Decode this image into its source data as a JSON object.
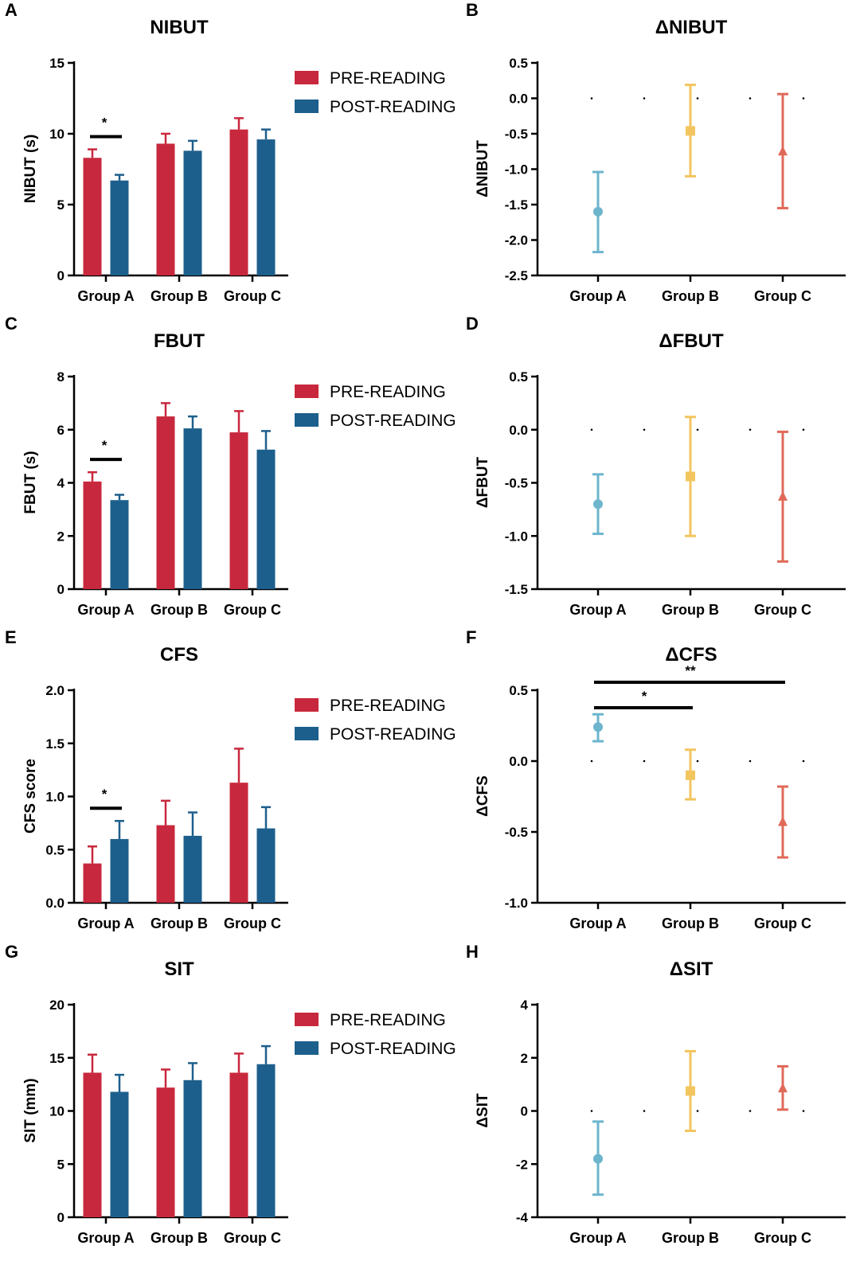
{
  "colors": {
    "pre": "#c8283d",
    "post": "#1d5f8c",
    "groupA": "#6cb5cd",
    "groupB": "#f2c55f",
    "groupC": "#e06a58"
  },
  "legend": {
    "pre": "PRE-READING",
    "post": "POST-READING"
  },
  "chart_data": [
    {
      "letter": "A",
      "type": "bar",
      "title": "NIBUT",
      "ylabel": "NIBUT (s)",
      "categories": [
        "Group A",
        "Group B",
        "Group C"
      ],
      "ylim": [
        0,
        15
      ],
      "yticks": [
        "0",
        "5",
        "10",
        "15"
      ],
      "series": [
        {
          "name": "PRE-READING",
          "values": [
            8.3,
            9.3,
            10.3
          ],
          "errors": [
            0.6,
            0.7,
            0.8
          ]
        },
        {
          "name": "POST-READING",
          "values": [
            6.7,
            8.8,
            9.6
          ],
          "errors": [
            0.4,
            0.7,
            0.7
          ]
        }
      ],
      "significance": [
        {
          "group": "Group A",
          "label": "*"
        }
      ]
    },
    {
      "letter": "B",
      "type": "scatter",
      "title": "ΔNIBUT",
      "ylabel": "ΔNIBUT",
      "categories": [
        "Group A",
        "Group B",
        "Group C"
      ],
      "ylim": [
        -2.5,
        0.5
      ],
      "yticks": [
        "0.5",
        "0.0",
        "-0.5",
        "-1.0",
        "-1.5",
        "-2.0",
        "-2.5"
      ],
      "values": [
        -1.6,
        -0.46,
        -0.75
      ],
      "lower": [
        -2.17,
        -1.1,
        -1.55
      ],
      "upper": [
        -1.04,
        0.19,
        0.06
      ],
      "markers": [
        "circle",
        "square",
        "triangle"
      ],
      "significance": []
    },
    {
      "letter": "C",
      "type": "bar",
      "title": "FBUT",
      "ylabel": "FBUT (s)",
      "categories": [
        "Group A",
        "Group B",
        "Group C"
      ],
      "ylim": [
        0,
        8
      ],
      "yticks": [
        "0",
        "2",
        "4",
        "6",
        "8"
      ],
      "series": [
        {
          "name": "PRE-READING",
          "values": [
            4.05,
            6.5,
            5.9
          ],
          "errors": [
            0.35,
            0.5,
            0.8
          ]
        },
        {
          "name": "POST-READING",
          "values": [
            3.35,
            6.05,
            5.25
          ],
          "errors": [
            0.2,
            0.45,
            0.7
          ]
        }
      ],
      "significance": [
        {
          "group": "Group A",
          "label": "*"
        }
      ]
    },
    {
      "letter": "D",
      "type": "scatter",
      "title": "ΔFBUT",
      "ylabel": "ΔFBUT",
      "categories": [
        "Group A",
        "Group B",
        "Group C"
      ],
      "ylim": [
        -1.5,
        0.5
      ],
      "yticks": [
        "0.5",
        "0.0",
        "-0.5",
        "-1.0",
        "-1.5"
      ],
      "values": [
        -0.7,
        -0.44,
        -0.63
      ],
      "lower": [
        -0.98,
        -1.0,
        -1.24
      ],
      "upper": [
        -0.42,
        0.12,
        -0.02
      ],
      "markers": [
        "circle",
        "square",
        "triangle"
      ],
      "significance": []
    },
    {
      "letter": "E",
      "type": "bar",
      "title": "CFS",
      "ylabel": "CFS score",
      "categories": [
        "Group A",
        "Group B",
        "Group C"
      ],
      "ylim": [
        0,
        2.0
      ],
      "yticks": [
        "0.0",
        "0.5",
        "1.0",
        "1.5",
        "2.0"
      ],
      "series": [
        {
          "name": "PRE-READING",
          "values": [
            0.37,
            0.73,
            1.13
          ],
          "errors": [
            0.16,
            0.23,
            0.32
          ]
        },
        {
          "name": "POST-READING",
          "values": [
            0.6,
            0.63,
            0.7
          ],
          "errors": [
            0.17,
            0.22,
            0.2
          ]
        }
      ],
      "significance": [
        {
          "group": "Group A",
          "label": "*"
        }
      ]
    },
    {
      "letter": "F",
      "type": "scatter",
      "title": "ΔCFS",
      "ylabel": "ΔCFS",
      "categories": [
        "Group A",
        "Group B",
        "Group C"
      ],
      "ylim": [
        -1.0,
        0.5
      ],
      "yticks": [
        "0.5",
        "0.0",
        "-0.5",
        "-1.0"
      ],
      "values": [
        0.24,
        -0.1,
        -0.43
      ],
      "lower": [
        0.14,
        -0.27,
        -0.68
      ],
      "upper": [
        0.33,
        0.08,
        -0.18
      ],
      "markers": [
        "circle",
        "square",
        "triangle"
      ],
      "significance": [
        {
          "from": "Group A",
          "to": "Group B",
          "label": "*"
        },
        {
          "from": "Group A",
          "to": "Group C",
          "label": "**"
        }
      ]
    },
    {
      "letter": "G",
      "type": "bar",
      "title": "SIT",
      "ylabel": "SIT (mm)",
      "categories": [
        "Group A",
        "Group B",
        "Group C"
      ],
      "ylim": [
        0,
        20
      ],
      "yticks": [
        "0",
        "5",
        "10",
        "15",
        "20"
      ],
      "series": [
        {
          "name": "PRE-READING",
          "values": [
            13.6,
            12.2,
            13.6
          ],
          "errors": [
            1.7,
            1.7,
            1.8
          ]
        },
        {
          "name": "POST-READING",
          "values": [
            11.8,
            12.9,
            14.4
          ],
          "errors": [
            1.6,
            1.6,
            1.7
          ]
        }
      ],
      "significance": []
    },
    {
      "letter": "H",
      "type": "scatter",
      "title": "ΔSIT",
      "ylabel": "ΔSIT",
      "categories": [
        "Group A",
        "Group B",
        "Group C"
      ],
      "ylim": [
        -4,
        4
      ],
      "yticks": [
        "4",
        "2",
        "0",
        "-2",
        "-4"
      ],
      "values": [
        -1.8,
        0.75,
        0.85
      ],
      "lower": [
        -3.15,
        -0.75,
        0.05
      ],
      "upper": [
        -0.4,
        2.25,
        1.68
      ],
      "markers": [
        "circle",
        "square",
        "triangle"
      ],
      "significance": []
    }
  ]
}
